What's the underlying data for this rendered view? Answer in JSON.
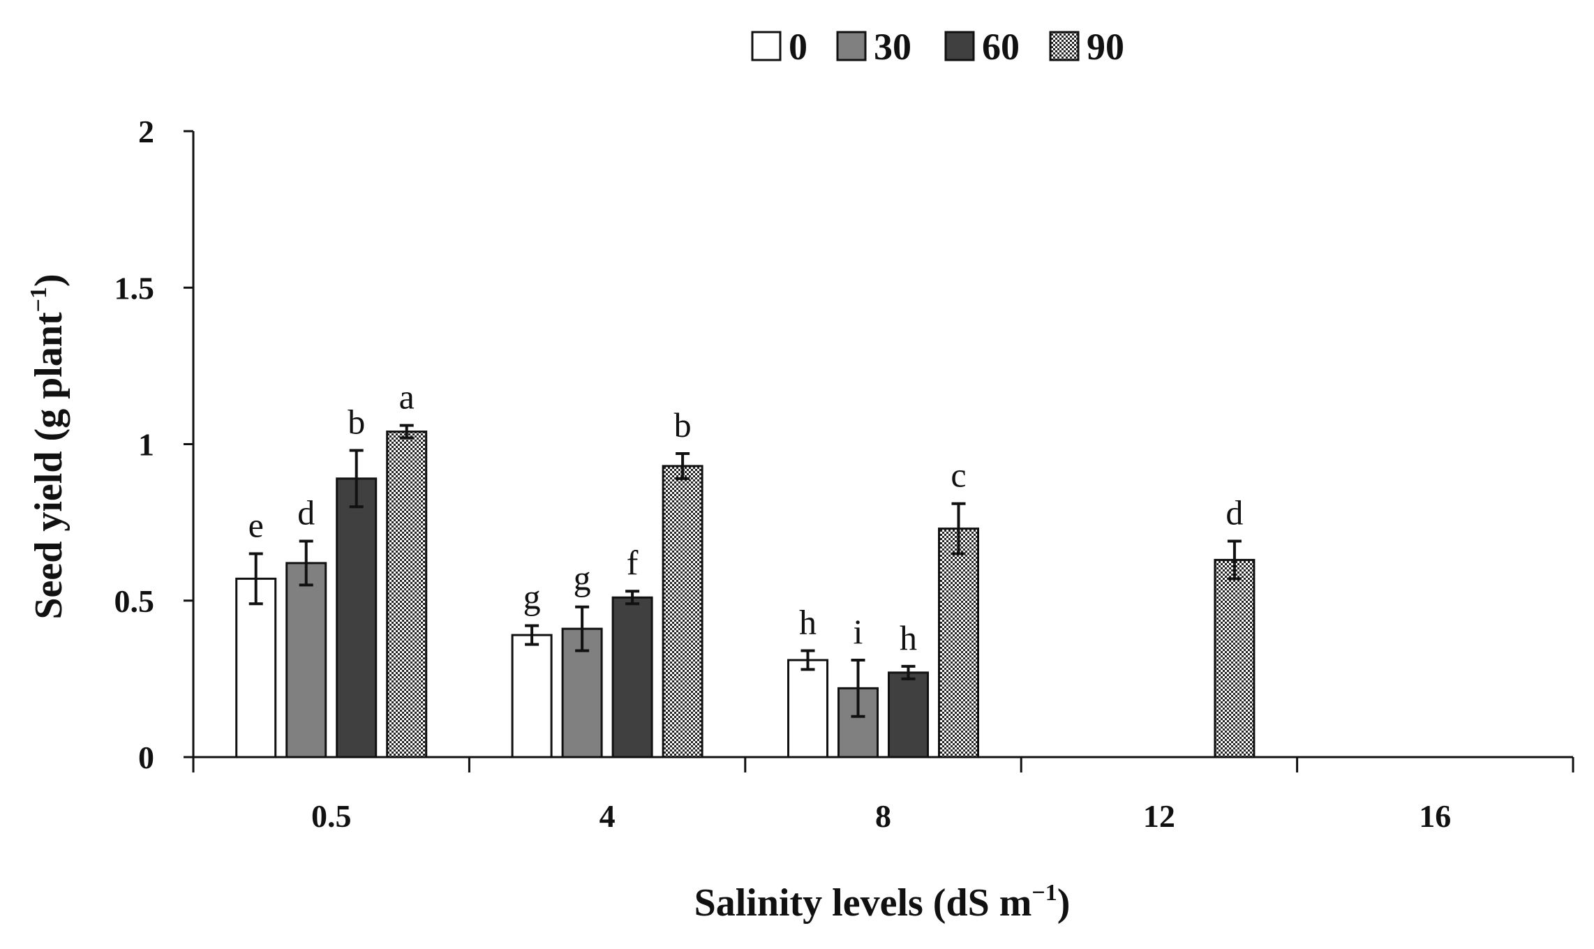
{
  "chart_data": {
    "type": "bar",
    "title": "",
    "xlabel": "Salinity levels (dS m",
    "xlabel_sup": "−1",
    "xlabel_end": ")",
    "ylabel": "Seed yield (g plant",
    "ylabel_sup": "−1",
    "ylabel_end": ")",
    "ylim": [
      0,
      2
    ],
    "yticks": [
      0,
      0.5,
      1,
      1.5,
      2
    ],
    "ytick_labels": [
      "0",
      "0.5",
      "1",
      "1.5",
      "2"
    ],
    "categories": [
      "0.5",
      "4",
      "8",
      "12",
      "16"
    ],
    "legend_position": "top",
    "series": [
      {
        "name": "0",
        "color": "#ffffff",
        "fill": "white",
        "values": [
          0.57,
          0.39,
          0.31,
          0,
          0
        ],
        "errors": [
          0.08,
          0.03,
          0.03,
          0,
          0
        ],
        "labels": [
          "e",
          "g",
          "h",
          "",
          ""
        ]
      },
      {
        "name": "30",
        "color": "#808080",
        "fill": "gray",
        "values": [
          0.62,
          0.41,
          0.22,
          0,
          0
        ],
        "errors": [
          0.07,
          0.07,
          0.09,
          0,
          0
        ],
        "labels": [
          "d",
          "g",
          "i",
          "",
          ""
        ]
      },
      {
        "name": "60",
        "color": "#404040",
        "fill": "darkgray",
        "values": [
          0.89,
          0.51,
          0.27,
          0,
          0
        ],
        "errors": [
          0.09,
          0.02,
          0.02,
          0,
          0
        ],
        "labels": [
          "b",
          "f",
          "h",
          "",
          ""
        ]
      },
      {
        "name": "90",
        "color": "#2b2b2b",
        "fill": "dotted",
        "values": [
          1.04,
          0.93,
          0.73,
          0.63,
          0
        ],
        "errors": [
          0.02,
          0.04,
          0.08,
          0.06,
          0
        ],
        "labels": [
          "a",
          "b",
          "c",
          "d",
          ""
        ]
      }
    ]
  }
}
